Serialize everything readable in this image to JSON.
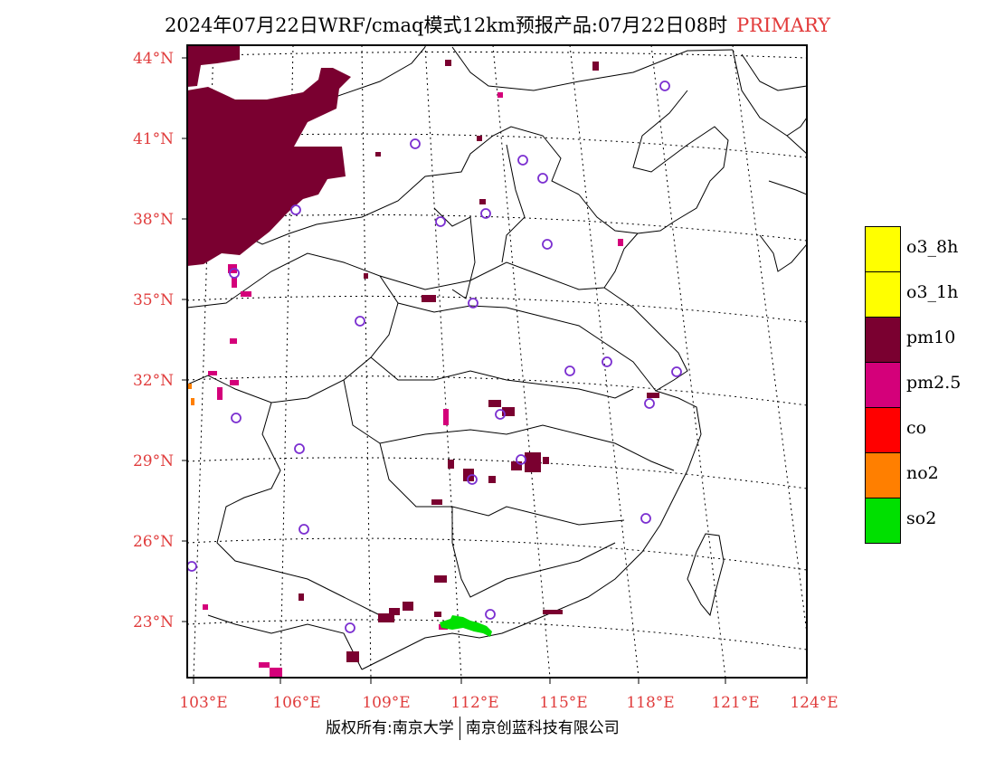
{
  "title": {
    "main": "2024年07月22日WRF/cmaq模式12km预报产品:07月22日08时",
    "tag": "PRIMARY"
  },
  "map": {
    "lat_labels": [
      "44°N",
      "41°N",
      "38°N",
      "35°N",
      "32°N",
      "29°N",
      "26°N",
      "23°N"
    ],
    "lon_labels": [
      "103°E",
      "106°E",
      "109°E",
      "112°E",
      "115°E",
      "118°E",
      "121°E",
      "124°E"
    ],
    "station_icon": "open-circle-icon"
  },
  "legend": [
    {
      "label": "o3_8h",
      "color": "#ffff00"
    },
    {
      "label": "o3_1h",
      "color": "#ffff00"
    },
    {
      "label": "pm10",
      "color": "#7a0030"
    },
    {
      "label": "pm2.5",
      "color": "#d4007a"
    },
    {
      "label": "co",
      "color": "#ff0000"
    },
    {
      "label": "no2",
      "color": "#ff7f00"
    },
    {
      "label": "so2",
      "color": "#00e000"
    }
  ],
  "footer": {
    "left": "版权所有:南京大学",
    "right": "南京创蓝科技有限公司"
  }
}
